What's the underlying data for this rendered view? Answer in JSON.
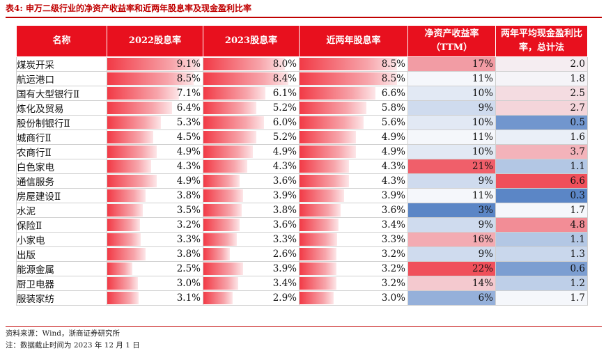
{
  "title": "表4:  申万二级行业的净资产收益率和近两年股息率及现金盈利比率",
  "columns": [
    "名称",
    "2022股息率",
    "2023股息率",
    "近两年股息率",
    "净资产收益率（TTM）",
    "两年平均现金盈利比率，总计法"
  ],
  "rows": [
    {
      "name": "煤炭开采",
      "d2022": "9.1%",
      "d2022_v": 9.1,
      "d2023": "8.0%",
      "d2023_v": 8.0,
      "d2y": "8.5%",
      "d2y_v": 8.5,
      "roe": "17%",
      "roe_v": 17,
      "cash": "2.0",
      "cash_v": 2.0
    },
    {
      "name": "航运港口",
      "d2022": "8.5%",
      "d2022_v": 8.5,
      "d2023": "8.4%",
      "d2023_v": 8.4,
      "d2y": "8.5%",
      "d2y_v": 8.5,
      "roe": "11%",
      "roe_v": 11,
      "cash": "1.8",
      "cash_v": 1.8
    },
    {
      "name": "国有大型银行Ⅱ",
      "d2022": "7.1%",
      "d2022_v": 7.1,
      "d2023": "6.1%",
      "d2023_v": 6.1,
      "d2y": "6.6%",
      "d2y_v": 6.6,
      "roe": "10%",
      "roe_v": 10,
      "cash": "2.5",
      "cash_v": 2.5
    },
    {
      "name": "炼化及贸易",
      "d2022": "6.4%",
      "d2022_v": 6.4,
      "d2023": "5.2%",
      "d2023_v": 5.2,
      "d2y": "5.8%",
      "d2y_v": 5.8,
      "roe": "9%",
      "roe_v": 9,
      "cash": "2.7",
      "cash_v": 2.7
    },
    {
      "name": "股份制银行Ⅱ",
      "d2022": "5.3%",
      "d2022_v": 5.3,
      "d2023": "6.0%",
      "d2023_v": 6.0,
      "d2y": "5.6%",
      "d2y_v": 5.6,
      "roe": "10%",
      "roe_v": 10,
      "cash": "0.5",
      "cash_v": 0.5
    },
    {
      "name": "城商行Ⅱ",
      "d2022": "4.5%",
      "d2022_v": 4.5,
      "d2023": "5.2%",
      "d2023_v": 5.2,
      "d2y": "4.9%",
      "d2y_v": 4.9,
      "roe": "11%",
      "roe_v": 11,
      "cash": "1.6",
      "cash_v": 1.6
    },
    {
      "name": "农商行Ⅱ",
      "d2022": "4.9%",
      "d2022_v": 4.9,
      "d2023": "4.9%",
      "d2023_v": 4.9,
      "d2y": "4.9%",
      "d2y_v": 4.9,
      "roe": "10%",
      "roe_v": 10,
      "cash": "3.7",
      "cash_v": 3.7
    },
    {
      "name": "白色家电",
      "d2022": "4.3%",
      "d2022_v": 4.3,
      "d2023": "4.3%",
      "d2023_v": 4.3,
      "d2y": "4.3%",
      "d2y_v": 4.3,
      "roe": "21%",
      "roe_v": 21,
      "cash": "1.1",
      "cash_v": 1.1
    },
    {
      "name": "通信服务",
      "d2022": "4.9%",
      "d2022_v": 4.9,
      "d2023": "3.6%",
      "d2023_v": 3.6,
      "d2y": "4.3%",
      "d2y_v": 4.3,
      "roe": "9%",
      "roe_v": 9,
      "cash": "6.6",
      "cash_v": 6.6
    },
    {
      "name": "房屋建设Ⅱ",
      "d2022": "3.8%",
      "d2022_v": 3.8,
      "d2023": "3.9%",
      "d2023_v": 3.9,
      "d2y": "3.9%",
      "d2y_v": 3.9,
      "roe": "11%",
      "roe_v": 11,
      "cash": "0.3",
      "cash_v": 0.3
    },
    {
      "name": "水泥",
      "d2022": "3.5%",
      "d2022_v": 3.5,
      "d2023": "3.8%",
      "d2023_v": 3.8,
      "d2y": "3.6%",
      "d2y_v": 3.6,
      "roe": "3%",
      "roe_v": 3,
      "cash": "1.7",
      "cash_v": 1.7
    },
    {
      "name": "保险Ⅱ",
      "d2022": "3.2%",
      "d2022_v": 3.2,
      "d2023": "3.6%",
      "d2023_v": 3.6,
      "d2y": "3.4%",
      "d2y_v": 3.4,
      "roe": "9%",
      "roe_v": 9,
      "cash": "4.8",
      "cash_v": 4.8
    },
    {
      "name": "小家电",
      "d2022": "3.3%",
      "d2022_v": 3.3,
      "d2023": "3.3%",
      "d2023_v": 3.3,
      "d2y": "3.3%",
      "d2y_v": 3.3,
      "roe": "16%",
      "roe_v": 16,
      "cash": "1.1",
      "cash_v": 1.1
    },
    {
      "name": "出版",
      "d2022": "3.8%",
      "d2022_v": 3.8,
      "d2023": "2.6%",
      "d2023_v": 2.6,
      "d2y": "3.2%",
      "d2y_v": 3.2,
      "roe": "9%",
      "roe_v": 9,
      "cash": "1.3",
      "cash_v": 1.3
    },
    {
      "name": "能源金属",
      "d2022": "2.5%",
      "d2022_v": 2.5,
      "d2023": "3.9%",
      "d2023_v": 3.9,
      "d2y": "3.2%",
      "d2y_v": 3.2,
      "roe": "22%",
      "roe_v": 22,
      "cash": "0.6",
      "cash_v": 0.6
    },
    {
      "name": "厨卫电器",
      "d2022": "3.0%",
      "d2022_v": 3.0,
      "d2023": "3.4%",
      "d2023_v": 3.4,
      "d2y": "3.2%",
      "d2y_v": 3.2,
      "roe": "14%",
      "roe_v": 14,
      "cash": "1.2",
      "cash_v": 1.2
    },
    {
      "name": "服装家纺",
      "d2022": "3.1%",
      "d2022_v": 3.1,
      "d2023": "2.9%",
      "d2023_v": 2.9,
      "d2y": "3.0%",
      "d2y_v": 3.0,
      "roe": "6%",
      "roe_v": 6,
      "cash": "1.7",
      "cash_v": 1.7
    }
  ],
  "colors": {
    "accent_red": "#c00000",
    "header_red": "#e8101e",
    "heat_high": "#f0505b",
    "heat_mid": "#f5f7fb",
    "heat_low": "#5b86c6"
  },
  "source_note": "资料来源：Wind，浙商证券研究所",
  "date_note": "注：数据截止时间为 2023 年 12 月 1 日"
}
